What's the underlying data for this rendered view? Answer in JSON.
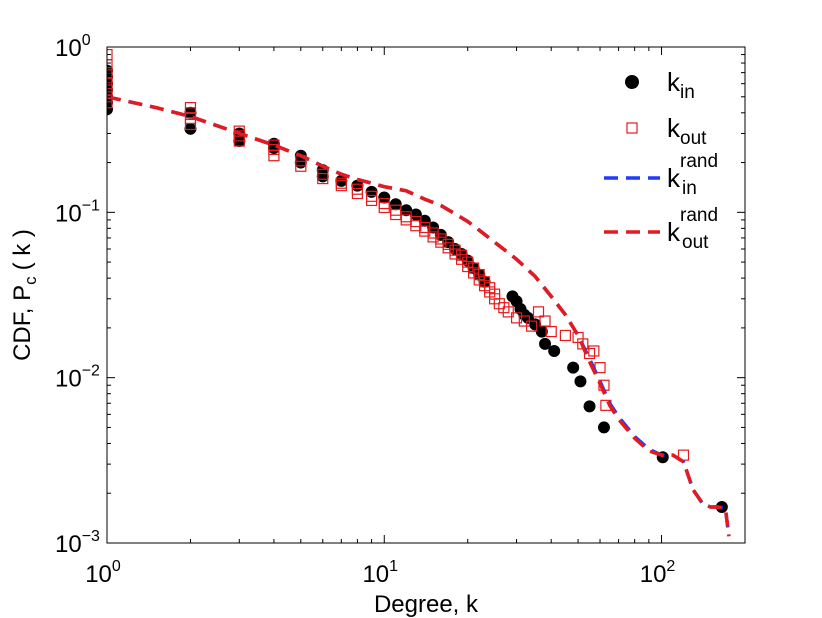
{
  "chart_data": {
    "type": "scatter",
    "title": "",
    "xlabel": "Degree, k",
    "ylabel": {
      "main": "CDF, P",
      "sub": "c",
      "rest": "( k )"
    },
    "xscale": "log",
    "yscale": "log",
    "xlim": [
      1,
      200
    ],
    "ylim": [
      0.001,
      1
    ],
    "x_ticks": [
      {
        "value": 1,
        "base": "10",
        "exp": "0"
      },
      {
        "value": 10,
        "base": "10",
        "exp": "1"
      },
      {
        "value": 100,
        "base": "10",
        "exp": "2"
      }
    ],
    "y_ticks": [
      {
        "value": 0.001,
        "base": "10",
        "exp": "−3"
      },
      {
        "value": 0.01,
        "base": "10",
        "exp": "−2"
      },
      {
        "value": 0.1,
        "base": "10",
        "exp": "−1"
      },
      {
        "value": 1,
        "base": "10",
        "exp": "0"
      }
    ],
    "legend_position": "top-right",
    "series": [
      {
        "name": "k_in",
        "label": {
          "base": "k",
          "sub": "in",
          "sup": ""
        },
        "marker": "filled-circle",
        "color": "#000000",
        "x": [
          1,
          1,
          1,
          1,
          1,
          1,
          1,
          2,
          2,
          3,
          3,
          4,
          4,
          5,
          5,
          6,
          6,
          7,
          8,
          9,
          10,
          11,
          12,
          13,
          14,
          15,
          16,
          17,
          18,
          19,
          20,
          21,
          22,
          23,
          29,
          30,
          31,
          32,
          33,
          35,
          37,
          38,
          41,
          48,
          51,
          55,
          62,
          101,
          165
        ],
        "y": [
          0.42,
          0.46,
          0.5,
          0.55,
          0.6,
          0.66,
          0.72,
          0.32,
          0.4,
          0.27,
          0.3,
          0.245,
          0.26,
          0.2,
          0.22,
          0.165,
          0.18,
          0.155,
          0.145,
          0.133,
          0.123,
          0.112,
          0.103,
          0.097,
          0.089,
          0.081,
          0.073,
          0.066,
          0.06,
          0.056,
          0.051,
          0.046,
          0.042,
          0.038,
          0.031,
          0.029,
          0.026,
          0.024,
          0.023,
          0.021,
          0.019,
          0.016,
          0.0145,
          0.0115,
          0.0095,
          0.0067,
          0.005,
          0.0033,
          0.00165
        ]
      },
      {
        "name": "k_out",
        "label": {
          "base": "k",
          "sub": "out",
          "sup": ""
        },
        "marker": "open-square",
        "color": "#e41a1c",
        "x": [
          1,
          1,
          1,
          1,
          1,
          1,
          1,
          1,
          2,
          2,
          2,
          2,
          3,
          3,
          3,
          4,
          4,
          4,
          5,
          5,
          6,
          6,
          7,
          7,
          8,
          8,
          9,
          9,
          10,
          10,
          11,
          11,
          12,
          12,
          13,
          13,
          14,
          14,
          15,
          15,
          16,
          16,
          17,
          17,
          18,
          18,
          19,
          19,
          20,
          20,
          21,
          21,
          22,
          22,
          23,
          23,
          24,
          24,
          25,
          25,
          26,
          27,
          28,
          30,
          32,
          34,
          36,
          38,
          40,
          45,
          50,
          52,
          55,
          57,
          60,
          62,
          63,
          120
        ],
        "y": [
          0.46,
          0.5,
          0.55,
          0.6,
          0.65,
          0.7,
          0.78,
          0.9,
          0.34,
          0.37,
          0.4,
          0.43,
          0.27,
          0.29,
          0.31,
          0.22,
          0.24,
          0.255,
          0.19,
          0.205,
          0.16,
          0.17,
          0.145,
          0.15,
          0.13,
          0.138,
          0.118,
          0.125,
          0.107,
          0.113,
          0.097,
          0.103,
          0.09,
          0.094,
          0.083,
          0.088,
          0.077,
          0.081,
          0.071,
          0.075,
          0.066,
          0.069,
          0.061,
          0.064,
          0.056,
          0.059,
          0.052,
          0.055,
          0.047,
          0.05,
          0.043,
          0.046,
          0.039,
          0.042,
          0.036,
          0.038,
          0.033,
          0.035,
          0.03,
          0.032,
          0.028,
          0.0265,
          0.025,
          0.023,
          0.022,
          0.0205,
          0.025,
          0.022,
          0.019,
          0.018,
          0.0175,
          0.016,
          0.014,
          0.0145,
          0.0115,
          0.009,
          0.0068,
          0.0034
        ]
      },
      {
        "name": "k_in_rand",
        "label": {
          "base": "k",
          "sub": "in",
          "sup": "rand"
        },
        "line": "dashed",
        "color": "#1f3bff",
        "x": [
          1,
          1.5,
          2,
          3,
          4,
          5,
          6,
          7,
          8,
          9,
          10,
          12,
          14,
          16,
          18,
          20,
          22,
          25,
          28,
          30,
          35,
          40,
          45,
          50,
          55,
          60,
          65,
          70,
          80,
          90,
          100,
          110,
          120,
          130,
          140,
          150,
          160,
          170,
          175
        ],
        "y": [
          0.5,
          0.43,
          0.38,
          0.3,
          0.255,
          0.22,
          0.19,
          0.17,
          0.158,
          0.15,
          0.143,
          0.135,
          0.12,
          0.11,
          0.098,
          0.088,
          0.078,
          0.066,
          0.057,
          0.052,
          0.041,
          0.031,
          0.024,
          0.018,
          0.013,
          0.0095,
          0.007,
          0.0058,
          0.0044,
          0.0037,
          0.0034,
          0.0034,
          0.0031,
          0.0021,
          0.00175,
          0.00165,
          0.00165,
          0.00162,
          0.0011
        ]
      },
      {
        "name": "k_out_rand",
        "label": {
          "base": "k",
          "sub": "out",
          "sup": "rand"
        },
        "line": "dashed",
        "color": "#e41a1c",
        "x": [
          1,
          1.5,
          2,
          3,
          4,
          5,
          6,
          7,
          8,
          9,
          10,
          12,
          14,
          16,
          18,
          20,
          22,
          25,
          28,
          30,
          35,
          40,
          45,
          50,
          55,
          60,
          65,
          70,
          80,
          90,
          100,
          110,
          120,
          130,
          140,
          150,
          160,
          170,
          175
        ],
        "y": [
          0.5,
          0.43,
          0.38,
          0.3,
          0.255,
          0.22,
          0.19,
          0.17,
          0.158,
          0.15,
          0.143,
          0.135,
          0.12,
          0.11,
          0.098,
          0.088,
          0.078,
          0.066,
          0.057,
          0.052,
          0.041,
          0.031,
          0.024,
          0.018,
          0.0125,
          0.0092,
          0.0068,
          0.0056,
          0.0043,
          0.0036,
          0.0034,
          0.0034,
          0.0031,
          0.0021,
          0.00175,
          0.00165,
          0.00165,
          0.00162,
          0.0011
        ]
      }
    ]
  }
}
